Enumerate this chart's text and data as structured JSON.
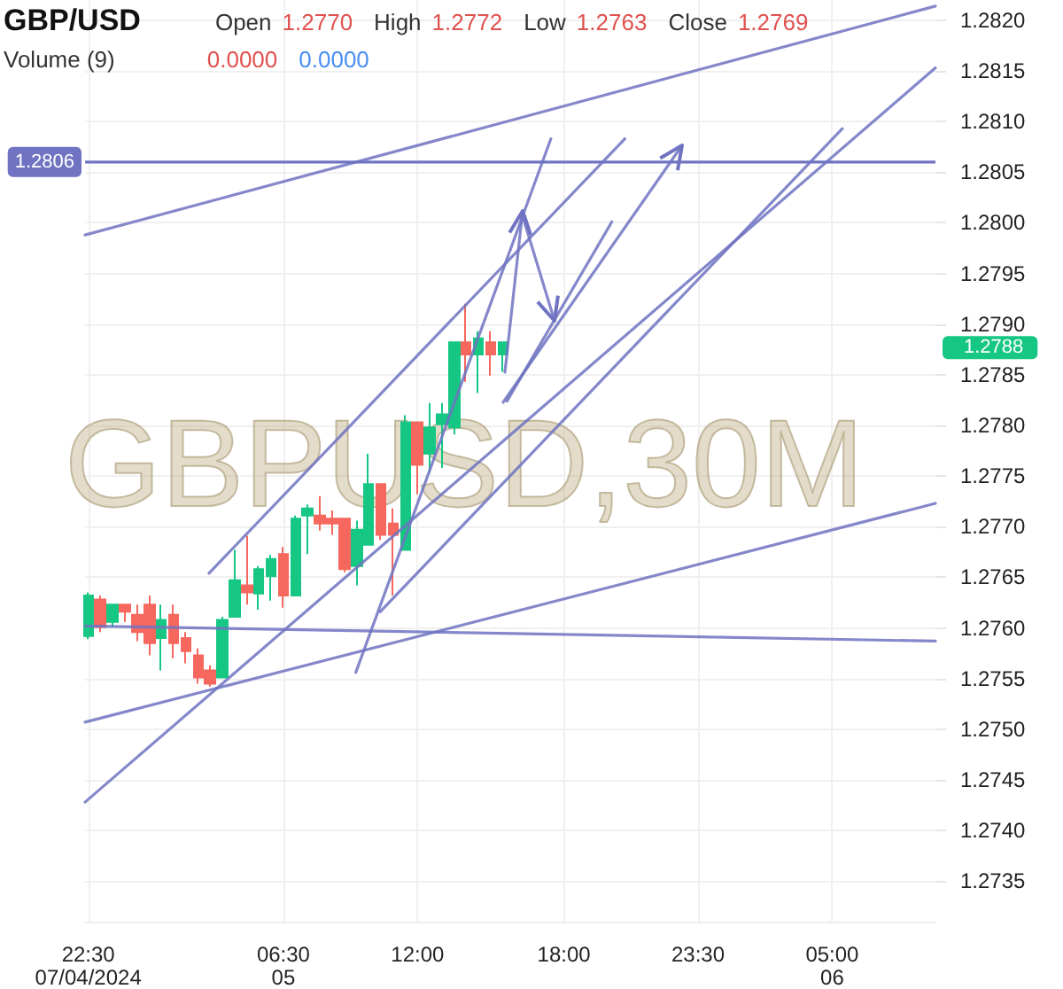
{
  "chart_data": {
    "type": "candlestick",
    "title": "GBP/USD",
    "annotations": [
      "Open",
      "1.2770",
      "High",
      "1.2772",
      "Low",
      "1.2763",
      "Close",
      "1.2769",
      "Volume (9)",
      "0.0000",
      "0.0000",
      "GBPUSD,30M",
      "1.2788"
    ],
    "x": [
      "2024-07-04T22:30",
      "2024-07-04T23:00",
      "2024-07-04T23:30",
      "2024-07-05T00:00",
      "2024-07-05T00:30",
      "2024-07-05T01:00",
      "2024-07-05T01:30",
      "2024-07-05T02:00",
      "2024-07-05T02:30",
      "2024-07-05T03:00",
      "2024-07-05T03:30",
      "2024-07-05T04:00",
      "2024-07-05T04:30",
      "2024-07-05T05:00",
      "2024-07-05T05:30",
      "2024-07-05T06:00",
      "2024-07-05T06:30",
      "2024-07-05T07:00",
      "2024-07-05T07:30",
      "2024-07-05T08:00",
      "2024-07-05T08:30",
      "2024-07-05T09:00",
      "2024-07-05T09:30",
      "2024-07-05T10:00",
      "2024-07-05T10:30",
      "2024-07-05T11:00",
      "2024-07-05T11:30",
      "2024-07-05T12:00",
      "2024-07-05T12:30",
      "2024-07-05T13:00",
      "2024-07-05T13:30",
      "2024-07-05T14:00",
      "2024-07-05T14:30",
      "2024-07-05T15:00",
      "2024-07-05T15:30"
    ],
    "ohlc": [
      [
        1.27592,
        1.27635,
        1.27589,
        1.27632
      ],
      [
        1.27628,
        1.27632,
        1.27596,
        1.27601
      ],
      [
        1.27606,
        1.27623,
        1.27601,
        1.27623
      ],
      [
        1.27623,
        1.27623,
        1.27606,
        1.27616
      ],
      [
        1.27613,
        1.27623,
        1.27587,
        1.27596
      ],
      [
        1.27623,
        1.27632,
        1.27573,
        1.27585
      ],
      [
        1.2759,
        1.27623,
        1.27558,
        1.27608
      ],
      [
        1.27613,
        1.27623,
        1.2757,
        1.27585
      ],
      [
        1.2759,
        1.27596,
        1.27565,
        1.27577
      ],
      [
        1.27573,
        1.2758,
        1.27545,
        1.27551
      ],
      [
        1.27558,
        1.27563,
        1.27542,
        1.27545
      ],
      [
        1.27551,
        1.27611,
        1.27551,
        1.27608
      ],
      [
        1.27611,
        1.27677,
        1.27611,
        1.27647
      ],
      [
        1.27642,
        1.27691,
        1.27623,
        1.27635
      ],
      [
        1.27634,
        1.27661,
        1.27618,
        1.27658
      ],
      [
        1.27651,
        1.27672,
        1.27627,
        1.27668
      ],
      [
        1.27673,
        1.2768,
        1.2762,
        1.27632
      ],
      [
        1.27632,
        1.27711,
        1.27632,
        1.27708
      ],
      [
        1.27711,
        1.27722,
        1.27673,
        1.27718
      ],
      [
        1.27711,
        1.2773,
        1.27696,
        1.27703
      ],
      [
        1.27708,
        1.27716,
        1.27692,
        1.27703
      ],
      [
        1.27708,
        1.27708,
        1.27655,
        1.27658
      ],
      [
        1.27661,
        1.27706,
        1.27642,
        1.27697
      ],
      [
        1.27682,
        1.27772,
        1.27682,
        1.27742
      ],
      [
        1.27742,
        1.27742,
        1.27687,
        1.27692
      ],
      [
        1.27703,
        1.27718,
        1.27632,
        1.27692
      ],
      [
        1.27677,
        1.2781,
        1.27677,
        1.27803
      ],
      [
        1.27803,
        1.27803,
        1.27732,
        1.27761
      ],
      [
        1.27772,
        1.27822,
        1.27753,
        1.27798
      ],
      [
        1.27801,
        1.27822,
        1.27758,
        1.27811
      ],
      [
        1.27798,
        1.27882,
        1.27791,
        1.27882
      ],
      [
        1.27882,
        1.2792,
        1.27843,
        1.2787
      ],
      [
        1.2787,
        1.27893,
        1.27832,
        1.27886
      ],
      [
        1.27882,
        1.27893,
        1.27849,
        1.2787
      ],
      [
        1.2787,
        1.27882,
        1.27853,
        1.27882
      ]
    ],
    "colors": [
      "#16c784",
      "#f6675e",
      "#16c784",
      "#f6675e",
      "#f6675e",
      "#f6675e",
      "#16c784",
      "#f6675e",
      "#f6675e",
      "#f6675e",
      "#f6675e",
      "#16c784",
      "#16c784",
      "#f6675e",
      "#16c784",
      "#16c784",
      "#f6675e",
      "#16c784",
      "#16c784",
      "#f6675e",
      "#f6675e",
      "#f6675e",
      "#16c784",
      "#16c784",
      "#f6675e",
      "#f6675e",
      "#16c784",
      "#f6675e",
      "#16c784",
      "#16c784",
      "#16c784",
      "#f6675e",
      "#16c784",
      "#f6675e",
      "#16c784"
    ],
    "series": [
      {
        "type": "line",
        "color": "#6f73c1",
        "x": [
          "2024-07-04T22:22",
          "2024-07-06T09:14"
        ],
        "values": [
          1.27988,
          1.28214
        ]
      },
      {
        "type": "line",
        "color": "#6f73c1",
        "x": [
          "2024-07-04T22:22",
          "2024-07-06T09:14"
        ],
        "values": [
          1.27602,
          1.27587
        ]
      },
      {
        "type": "line",
        "color": "#6f73c1",
        "x": [
          "2024-07-04T22:22",
          "2024-07-06T09:14"
        ],
        "values": [
          1.27507,
          1.27723
        ]
      },
      {
        "type": "line",
        "color": "#6f73c1",
        "x": [
          "2024-07-04T22:22",
          "2024-07-06T09:14"
        ],
        "values": [
          1.27428,
          1.28153
        ]
      },
      {
        "type": "line",
        "color": "#6f73c1",
        "x": [
          "2024-07-05T03:27",
          "2024-07-05T20:30"
        ],
        "values": [
          1.27654,
          1.28083
        ]
      },
      {
        "type": "line",
        "color": "#6f73c1",
        "x": [
          "2024-07-05T09:28",
          "2024-07-05T17:28"
        ],
        "values": [
          1.27556,
          1.28083
        ]
      },
      {
        "type": "line",
        "color": "#6f73c1",
        "x": [
          "2024-07-05T15:40",
          "2024-07-05T19:58"
        ],
        "values": [
          1.27824,
          1.28001
        ]
      },
      {
        "type": "line",
        "color": "#6f73c1",
        "x": [
          "2024-07-05T10:28",
          "2024-07-06T05:25"
        ],
        "values": [
          1.27616,
          1.28093
        ]
      }
    ],
    "ref_lines": [
      {
        "axis": "y",
        "value": 1.2806,
        "label": "1.2806",
        "color": "#6f73c1"
      }
    ],
    "xlim": [
      "2024-07-04T22:22",
      "2024-07-06T09:14"
    ],
    "xticks": [
      {
        "value": "2024-07-04T22:30",
        "label": "22:30\n07/04/2024"
      },
      {
        "value": "2024-07-05T06:30",
        "label": "06:30\n05"
      },
      {
        "value": "2024-07-05T12:00",
        "label": "12:00"
      },
      {
        "value": "2024-07-05T18:00",
        "label": "18:00"
      },
      {
        "value": "2024-07-05T23:30",
        "label": "23:30"
      },
      {
        "value": "2024-07-06T05:00",
        "label": "05:00\n06"
      }
    ],
    "ylim": [
      1.2731,
      1.2822
    ],
    "yticks": [
      1.2735,
      {
        "value": 1.274,
        "label": "1.2740"
      },
      1.2745,
      {
        "value": 1.275,
        "label": "1.2750"
      },
      1.2755,
      {
        "value": 1.276,
        "label": "1.2760"
      },
      1.2765,
      {
        "value": 1.277,
        "label": "1.2770"
      },
      1.2775,
      {
        "value": 1.278,
        "label": "1.2780"
      },
      1.2785,
      {
        "value": 1.279,
        "label": "1.2790"
      },
      1.2795,
      {
        "value": 1.28,
        "label": "1.2800"
      },
      1.2805,
      {
        "value": 1.281,
        "label": "1.2810"
      },
      1.2815,
      {
        "value": 1.282,
        "label": "1.2820"
      }
    ],
    "grid": true,
    "marker": "none",
    "line_style": "solid"
  }
}
